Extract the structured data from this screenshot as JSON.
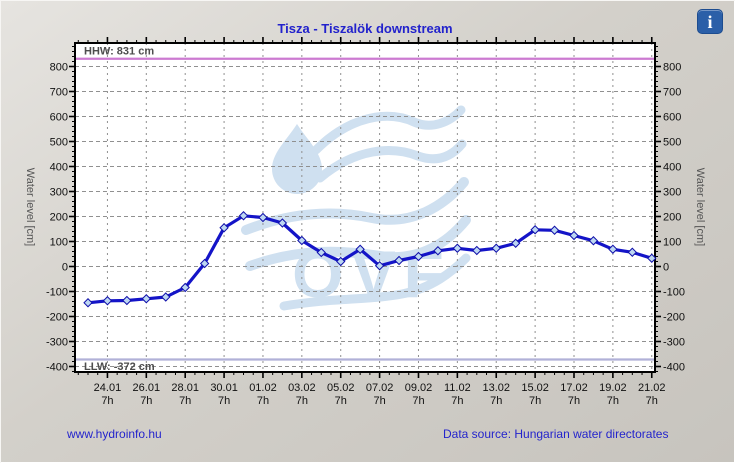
{
  "header": {
    "info_icon_glyph": "i"
  },
  "footer": {
    "link": "www.hydroinfo.hu",
    "data_source": "Data source: Hungarian water directorates"
  },
  "colors": {
    "title": "#2222cc",
    "link": "#2424cc",
    "info_bg": "#2b5fa8",
    "grid": "#909090",
    "axis": "#111111",
    "axis_title": "#555555",
    "ref_label": "#4d4d4d",
    "series": "#1414c8",
    "marker_fill": "#bdd7f2",
    "marker_stroke": "#1010aa",
    "hhw": "#cc7ad1",
    "llw": "#b1b1d8",
    "watermark": "#cfe0f0",
    "plot_bg": "#ffffff",
    "frame": "#000000"
  },
  "chart_data": {
    "type": "line",
    "title": "Tisza - Tiszalök downstream",
    "ylabel_left": "Water level [cm]",
    "ylabel_right": "Water level [cm]",
    "xlabel": "",
    "categories": [
      "23.01",
      "24.01",
      "25.01",
      "26.01",
      "27.01",
      "28.01",
      "29.01",
      "30.01",
      "31.01",
      "01.02",
      "02.02",
      "03.02",
      "04.02",
      "05.02",
      "06.02",
      "07.02",
      "08.02",
      "09.02",
      "10.02",
      "11.02",
      "12.02",
      "13.02",
      "14.02",
      "15.02",
      "16.02",
      "17.02",
      "18.02",
      "19.02",
      "20.02",
      "21.02"
    ],
    "values": [
      -145,
      -137,
      -136,
      -129,
      -122,
      -84,
      12,
      155,
      203,
      196,
      174,
      104,
      56,
      20,
      69,
      3,
      24,
      40,
      63,
      73,
      64,
      73,
      93,
      147,
      145,
      124,
      103,
      69,
      57,
      33
    ],
    "x_labels": [
      "24.01",
      "26.01",
      "28.01",
      "30.01",
      "01.02",
      "03.02",
      "05.02",
      "07.02",
      "09.02",
      "11.02",
      "13.02",
      "15.02",
      "17.02",
      "19.02",
      "21.02"
    ],
    "x_label_first_index": 1,
    "x_label_step": 2,
    "x_sub_label": "7h",
    "y_ticks": [
      -400,
      -300,
      -200,
      -100,
      0,
      100,
      200,
      300,
      400,
      500,
      600,
      700,
      800
    ],
    "y_minor_step": 20,
    "x_minor_step": 0.5,
    "ylim": [
      -420,
      895
    ],
    "grid": true,
    "legend_position": "none",
    "reference_lines": [
      {
        "name": "HHW",
        "label": "HHW: 831 cm",
        "value": 831
      },
      {
        "name": "LLW",
        "label": "LLW: -372 cm",
        "value": -372
      }
    ],
    "watermark_text": "OVF"
  }
}
